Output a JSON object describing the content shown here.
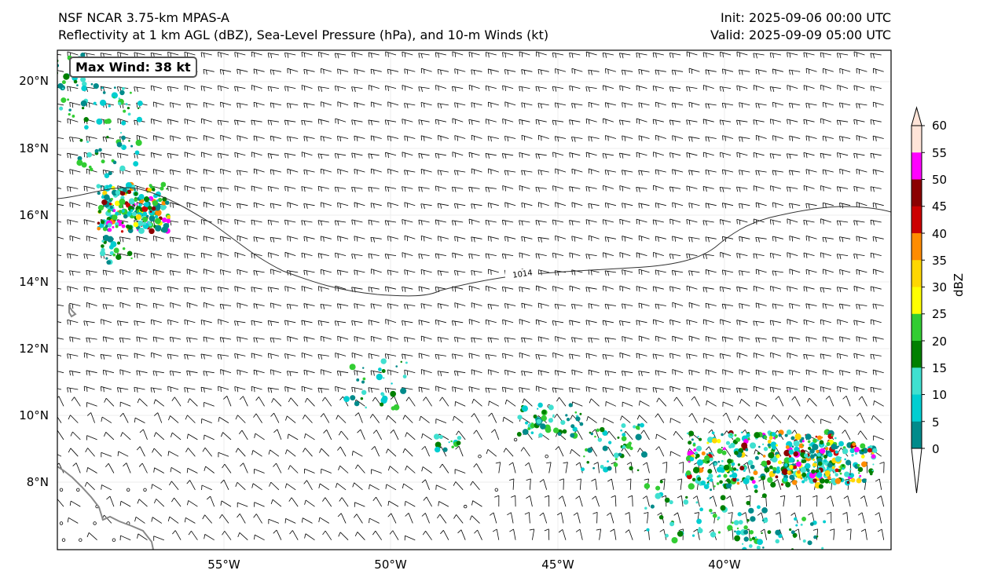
{
  "header": {
    "left_line1": "NSF NCAR 3.75-km MPAS-A",
    "left_line2": "Reflectivity at 1 km AGL (dBZ), Sea-Level Pressure (hPa), and 10-m Winds (kt)",
    "right_line1": "Init: 2025-09-06 00:00 UTC",
    "right_line2": "Valid: 2025-09-09 05:00 UTC"
  },
  "map": {
    "lat_labels": [
      "20°N",
      "18°N",
      "16°N",
      "14°N",
      "12°N",
      "10°N",
      "8°N"
    ],
    "lon_labels": [
      "55°W",
      "50°W",
      "45°W",
      "40°W"
    ],
    "max_wind_label": "Max Wind: 38 kt",
    "isobar_label": "1014",
    "isobar_color": "#333333",
    "coast_color": "#888888"
  },
  "colorbar": {
    "label": "dBZ",
    "ticks": [
      "60",
      "55",
      "50",
      "45",
      "40",
      "35",
      "30",
      "25",
      "20",
      "15",
      "10",
      "5",
      "0"
    ],
    "colors": [
      "#ffe4d8",
      "#ff00ff",
      "#8b0000",
      "#cc0000",
      "#ff8c00",
      "#ffd700",
      "#ffff00",
      "#32cd32",
      "#008000",
      "#40e0d0",
      "#00ced1",
      "#008b8b"
    ]
  }
}
